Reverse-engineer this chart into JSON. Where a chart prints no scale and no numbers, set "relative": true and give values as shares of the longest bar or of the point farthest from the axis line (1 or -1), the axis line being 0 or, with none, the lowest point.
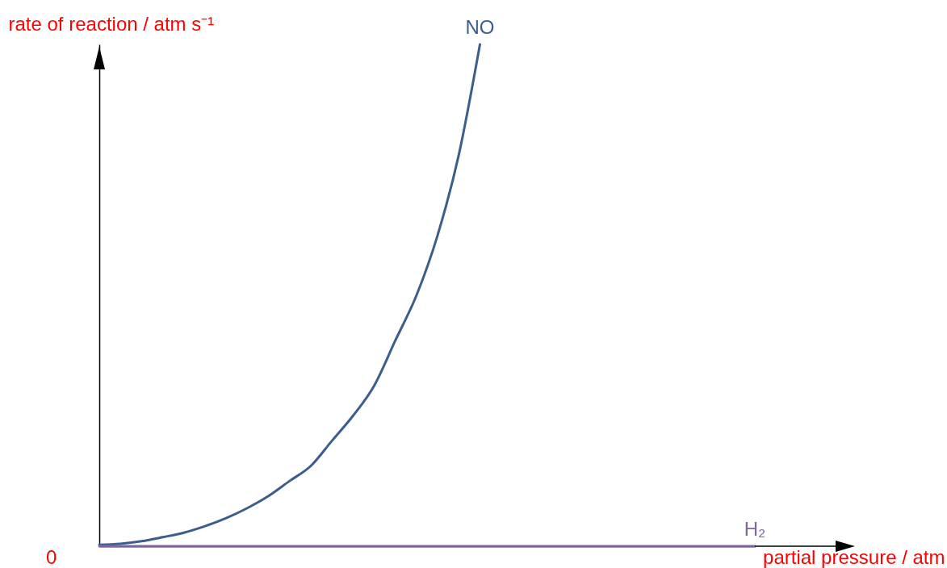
{
  "chart_data": {
    "type": "line",
    "relative": true,
    "xlabel": "partial pressure / atm",
    "ylabel": "rate of reaction / atm s⁻¹",
    "annotations": [
      "0"
    ],
    "categories": [
      null,
      null,
      null,
      null,
      null,
      null,
      null,
      null,
      null,
      null,
      null,
      null,
      null,
      null,
      null,
      null,
      null,
      null,
      null,
      null,
      null,
      null,
      null,
      null,
      null,
      null,
      null,
      null,
      null,
      null,
      null,
      null
    ],
    "series": [
      {
        "name": "NO",
        "color": "#3b5e8c",
        "values": [
          0.003,
          0.005,
          0.01,
          0.018,
          0.027,
          0.04,
          0.056,
          0.076,
          0.1,
          0.13,
          0.16,
          0.21,
          0.26,
          0.32,
          0.41,
          0.5,
          0.62,
          0.78,
          1,
          null,
          null,
          null,
          null,
          null,
          null,
          null,
          null,
          null,
          null,
          null,
          null,
          null
        ]
      },
      {
        "name": "H₂",
        "color": "#8064a2",
        "values": [
          0,
          0,
          0,
          0,
          0,
          0,
          0,
          0,
          0,
          0,
          0,
          0,
          0,
          0,
          0,
          0,
          0,
          0,
          0,
          0,
          0,
          0,
          0,
          0,
          0,
          0,
          0,
          0,
          0,
          0,
          0,
          0
        ]
      }
    ],
    "legend": false,
    "grid": false,
    "marker": "none",
    "line_style": "solid"
  }
}
